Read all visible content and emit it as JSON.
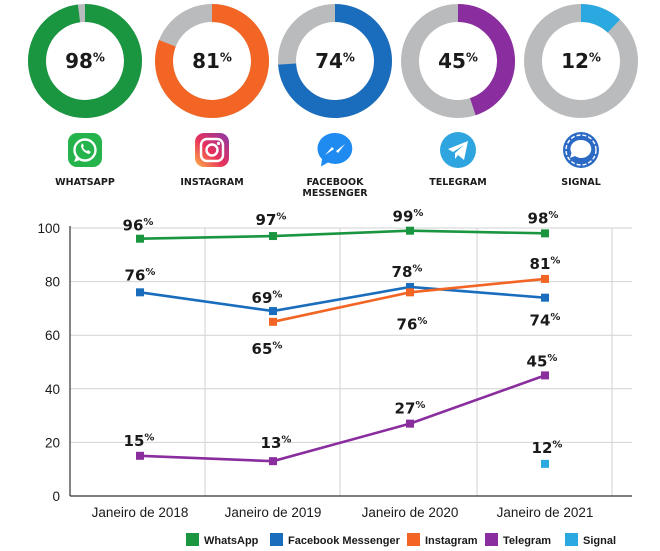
{
  "donuts": [
    {
      "app": "WHATSAPP",
      "value": 98,
      "label": "98%",
      "color": "#1a9641",
      "icon": "whatsapp-icon"
    },
    {
      "app": "INSTAGRAM",
      "value": 81,
      "label": "81%",
      "color": "#f26524",
      "icon": "instagram-icon"
    },
    {
      "app": [
        "FACEBOOK",
        "MESSENGER"
      ],
      "value": 74,
      "label": "74%",
      "color": "#1a6dbd",
      "icon": "facebook-messenger-icon"
    },
    {
      "app": "TELEGRAM",
      "value": 45,
      "label": "45%",
      "color": "#8a2d9e",
      "icon": "telegram-icon"
    },
    {
      "app": "SIGNAL",
      "value": 12,
      "label": "12%",
      "color": "#2aa8e0",
      "icon": "signal-icon"
    }
  ],
  "donut_track_color": "#b9bbbd",
  "chart_data": {
    "type": "line",
    "categories": [
      "Janeiro de 2018",
      "Janeiro de 2019",
      "Janeiro de 2020",
      "Janeiro de 2021"
    ],
    "ylim": [
      0,
      100
    ],
    "yticks": [
      0,
      20,
      40,
      60,
      80,
      100
    ],
    "grid": true,
    "legend_position": "bottom-right",
    "series": [
      {
        "name": "WhatsApp",
        "color": "#1a9641",
        "values": [
          96,
          97,
          99,
          98
        ],
        "labels": [
          "96%",
          "97%",
          "99%",
          "98%"
        ]
      },
      {
        "name": "Facebook Messenger",
        "color": "#1a6dbd",
        "values": [
          76,
          69,
          78,
          74
        ],
        "labels": [
          "76%",
          "69%",
          "78%",
          "74%"
        ]
      },
      {
        "name": "Instagram",
        "color": "#f26524",
        "values": [
          null,
          65,
          76,
          81
        ],
        "labels": [
          null,
          "65%",
          "76%",
          "81%"
        ]
      },
      {
        "name": "Telegram",
        "color": "#8a2d9e",
        "values": [
          15,
          13,
          27,
          45
        ],
        "labels": [
          "15%",
          "13%",
          "27%",
          "45%"
        ]
      },
      {
        "name": "Signal",
        "color": "#2aa8e0",
        "values": [
          null,
          null,
          null,
          12
        ],
        "labels": [
          null,
          null,
          null,
          "12%"
        ]
      }
    ]
  }
}
